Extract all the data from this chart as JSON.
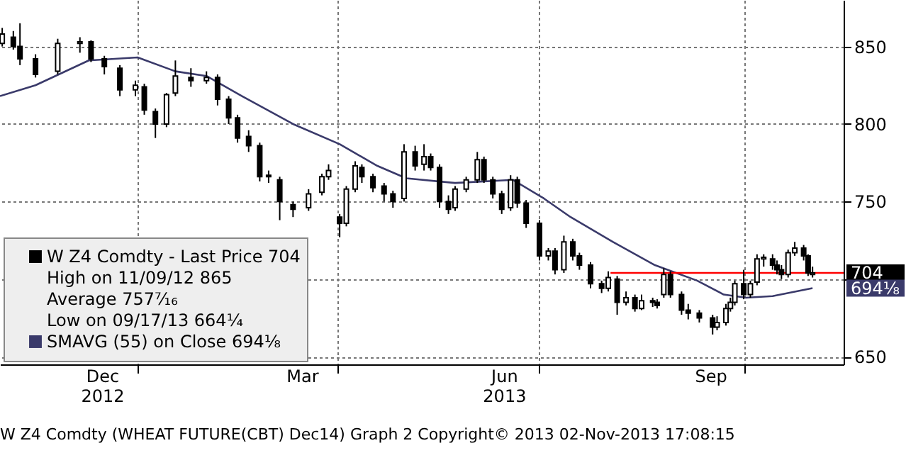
{
  "chart_data": {
    "type": "candlestick",
    "xlim": [
      "2012-10-31",
      "2013-11-15"
    ],
    "ylim": [
      645,
      880
    ],
    "xticks": [
      {
        "value": "2012-12-16",
        "label": "Dec\n2012"
      },
      {
        "value": "2013-01-01",
        "label": null
      },
      {
        "value": "2013-03-16",
        "label": "Mar"
      },
      {
        "value": "2013-04-01",
        "label": null
      },
      {
        "value": "2013-06-15",
        "label": "Jun\n2013"
      },
      {
        "value": "2013-07-01",
        "label": null
      },
      {
        "value": "2013-09-16",
        "label": "Sep"
      },
      {
        "value": "2013-10-01",
        "label": null
      }
    ],
    "yticks": [
      650,
      {
        "value": 700,
        "label": null
      },
      750,
      800,
      850
    ],
    "grid": true,
    "legend": "bottom left",
    "series": [
      {
        "type": "candlestick",
        "name": "W Z4 Comdty - Last Price 704",
        "color": "#000000",
        "x": [
          "2012-11-01",
          "2012-11-06",
          "2012-11-09",
          "2012-11-16",
          "2012-11-26",
          "2012-12-06",
          "2012-12-11",
          "2012-12-17",
          "2012-12-24",
          "2012-12-31",
          "2013-01-04",
          "2013-01-09",
          "2013-01-14",
          "2013-01-18",
          "2013-01-25",
          "2013-02-01",
          "2013-02-06",
          "2013-02-11",
          "2013-02-15",
          "2013-02-20",
          "2013-02-25",
          "2013-03-01",
          "2013-03-06",
          "2013-03-12",
          "2013-03-19",
          "2013-03-25",
          "2013-03-28",
          "2013-04-02",
          "2013-04-05",
          "2013-04-09",
          "2013-04-12",
          "2013-04-17",
          "2013-04-22",
          "2013-04-26",
          "2013-05-01",
          "2013-05-06",
          "2013-05-10",
          "2013-05-13",
          "2013-05-17",
          "2013-05-21",
          "2013-05-24",
          "2013-05-29",
          "2013-06-03",
          "2013-06-06",
          "2013-06-10",
          "2013-06-14",
          "2013-06-18",
          "2013-06-21",
          "2013-06-25",
          "2013-07-01",
          "2013-07-05",
          "2013-07-08",
          "2013-07-12",
          "2013-07-16",
          "2013-07-19",
          "2013-07-24",
          "2013-07-29",
          "2013-08-01",
          "2013-08-05",
          "2013-08-09",
          "2013-08-13",
          "2013-08-16",
          "2013-08-21",
          "2013-08-23",
          "2013-08-26",
          "2013-08-29",
          "2013-09-03",
          "2013-09-06",
          "2013-09-11",
          "2013-09-17",
          "2013-09-19",
          "2013-09-23",
          "2013-09-25",
          "2013-09-27",
          "2013-10-01",
          "2013-10-04",
          "2013-10-07",
          "2013-10-10",
          "2013-10-14",
          "2013-10-16",
          "2013-10-18",
          "2013-10-21",
          "2013-10-24",
          "2013-10-28",
          "2013-10-30",
          "2013-11-01"
        ],
        "ohlc": [
          [
            852,
            862,
            850,
            858
          ],
          [
            856,
            860,
            848,
            850
          ],
          [
            850,
            865,
            838,
            842
          ],
          [
            842,
            845,
            830,
            832
          ],
          [
            834,
            855,
            832,
            852
          ],
          [
            852,
            856,
            846,
            853
          ],
          [
            853,
            854,
            840,
            842
          ],
          [
            842,
            844,
            832,
            837
          ],
          [
            836,
            838,
            818,
            822
          ],
          [
            822,
            828,
            818,
            825
          ],
          [
            824,
            826,
            806,
            809
          ],
          [
            808,
            810,
            791,
            800
          ],
          [
            800,
            820,
            798,
            819
          ],
          [
            820,
            841,
            818,
            831
          ],
          [
            830,
            836,
            824,
            828
          ],
          [
            828,
            834,
            826,
            830
          ],
          [
            830,
            832,
            812,
            816
          ],
          [
            816,
            818,
            800,
            804
          ],
          [
            804,
            806,
            788,
            791
          ],
          [
            792,
            796,
            782,
            786
          ],
          [
            786,
            788,
            763,
            766
          ],
          [
            767,
            770,
            762,
            766
          ],
          [
            764,
            766,
            738,
            750
          ],
          [
            748,
            750,
            740,
            745
          ],
          [
            746,
            758,
            744,
            755
          ],
          [
            756,
            768,
            754,
            766
          ],
          [
            766,
            774,
            764,
            770
          ],
          [
            740,
            742,
            727,
            736
          ],
          [
            736,
            760,
            734,
            758
          ],
          [
            758,
            776,
            756,
            773
          ],
          [
            772,
            774,
            762,
            766
          ],
          [
            766,
            768,
            756,
            759
          ],
          [
            760,
            762,
            750,
            755
          ],
          [
            755,
            757,
            746,
            750
          ],
          [
            752,
            787,
            750,
            782
          ],
          [
            782,
            786,
            770,
            773
          ],
          [
            774,
            787,
            770,
            779
          ],
          [
            779,
            781,
            770,
            772
          ],
          [
            772,
            774,
            746,
            750
          ],
          [
            750,
            754,
            742,
            745
          ],
          [
            746,
            760,
            744,
            758
          ],
          [
            758,
            766,
            756,
            764
          ],
          [
            764,
            782,
            762,
            777
          ],
          [
            777,
            779,
            762,
            764
          ],
          [
            764,
            766,
            752,
            755
          ],
          [
            755,
            757,
            742,
            745
          ],
          [
            746,
            767,
            744,
            764
          ],
          [
            764,
            766,
            746,
            749
          ],
          [
            749,
            751,
            733,
            736
          ],
          [
            736,
            738,
            712,
            715
          ],
          [
            715,
            720,
            712,
            718
          ],
          [
            718,
            720,
            703,
            706
          ],
          [
            706,
            728,
            704,
            724
          ],
          [
            724,
            726,
            712,
            715
          ],
          [
            715,
            717,
            706,
            709
          ],
          [
            709,
            711,
            694,
            697
          ],
          [
            697,
            699,
            691,
            694
          ],
          [
            694,
            705,
            692,
            701
          ],
          [
            700,
            702,
            677,
            685
          ],
          [
            685,
            692,
            683,
            688
          ],
          [
            688,
            690,
            679,
            681
          ],
          [
            681,
            690,
            680,
            686
          ],
          [
            686,
            688,
            682,
            685
          ],
          [
            685,
            687,
            681,
            683
          ],
          [
            690,
            707,
            688,
            703
          ],
          [
            703,
            705,
            688,
            690
          ],
          [
            690,
            692,
            677,
            680
          ],
          [
            680,
            684,
            674,
            678
          ],
          [
            678,
            680,
            672,
            675
          ],
          [
            675,
            677,
            664.25,
            669
          ],
          [
            669,
            676,
            667,
            672
          ],
          [
            672,
            684,
            670,
            681
          ],
          [
            681,
            688,
            679,
            685
          ],
          [
            685,
            699,
            683,
            697
          ],
          [
            697,
            706,
            687,
            690
          ],
          [
            690,
            699,
            688,
            697
          ],
          [
            698,
            716,
            696,
            713
          ],
          [
            713,
            716,
            708,
            714
          ],
          [
            713,
            716,
            706,
            709
          ],
          [
            709,
            712,
            703,
            706
          ],
          [
            706,
            709,
            700,
            703
          ],
          [
            703,
            719,
            701,
            717
          ],
          [
            717,
            724,
            715,
            720
          ],
          [
            720,
            722,
            712,
            715
          ],
          [
            715,
            716,
            702,
            704
          ],
          [
            703,
            708,
            701,
            704
          ]
        ]
      },
      {
        "type": "line",
        "name": "SMAVG (55) on Close 694⅛",
        "color": "#3a3a6a",
        "x": [
          "2012-10-31",
          "2012-11-16",
          "2012-12-10",
          "2013-01-01",
          "2013-01-18",
          "2013-02-01",
          "2013-02-17",
          "2013-03-12",
          "2013-04-02",
          "2013-04-19",
          "2013-05-02",
          "2013-05-24",
          "2013-06-19",
          "2013-07-03",
          "2013-07-15",
          "2013-08-03",
          "2013-08-22",
          "2013-09-10",
          "2013-09-22",
          "2013-10-02",
          "2013-10-14",
          "2013-11-01"
        ],
        "values": [
          818,
          825,
          841,
          843,
          834,
          831,
          818,
          800,
          787,
          773,
          765,
          762,
          764,
          752,
          740,
          724,
          709,
          699,
          690,
          688,
          689,
          694.125
        ]
      },
      {
        "type": "line",
        "color": "#ff0000",
        "x": [
          "2013-08-02",
          "2013-11-15"
        ],
        "values": [
          704,
          704
        ]
      }
    ],
    "annotations": [
      "High on 11/09/12 865",
      "Average 757⁷⁄₁₆",
      "Low on 09/17/13 664¼",
      "704",
      "694⅛",
      "W Z4 Comdty (WHEAT FUTURE(CBT) Dec14) Graph 2 Copyright© 2013 02-Nov-2013 17:08:15"
    ]
  }
}
